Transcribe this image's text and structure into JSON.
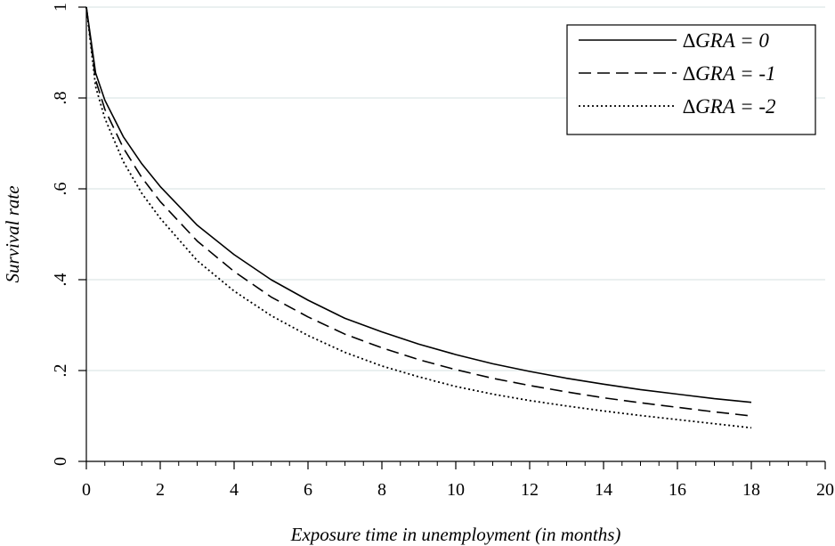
{
  "chart_data": {
    "type": "line",
    "xlabel": "Exposure time in unemployment (in months)",
    "ylabel": "Survival rate",
    "xlim": [
      0,
      20
    ],
    "ylim": [
      0,
      1
    ],
    "x_ticks": [
      0,
      2,
      4,
      6,
      8,
      10,
      12,
      14,
      16,
      18,
      20
    ],
    "x_tick_labels": [
      "0",
      "2",
      "4",
      "6",
      "8",
      "10",
      "12",
      "14",
      "16",
      "18",
      "20"
    ],
    "y_ticks": [
      0,
      0.2,
      0.4,
      0.6,
      0.8,
      1
    ],
    "y_tick_labels": [
      "0",
      ".2",
      ".4",
      ".6",
      ".8",
      "1"
    ],
    "grid": "horizontal",
    "legend_position": "top-right",
    "x": [
      0,
      0.25,
      0.5,
      1,
      1.5,
      2,
      3,
      4,
      5,
      6,
      7,
      8,
      9,
      10,
      11,
      12,
      13,
      14,
      15,
      16,
      17,
      18
    ],
    "series": [
      {
        "name": "∆GRA =  0",
        "style": "solid",
        "values": [
          1.0,
          0.855,
          0.795,
          0.715,
          0.655,
          0.605,
          0.52,
          0.455,
          0.4,
          0.355,
          0.315,
          0.285,
          0.258,
          0.235,
          0.215,
          0.198,
          0.183,
          0.17,
          0.158,
          0.148,
          0.138,
          0.13
        ]
      },
      {
        "name": "∆GRA = -1",
        "style": "dashed",
        "values": [
          1.0,
          0.84,
          0.775,
          0.69,
          0.625,
          0.572,
          0.485,
          0.418,
          0.362,
          0.318,
          0.28,
          0.25,
          0.224,
          0.202,
          0.183,
          0.167,
          0.153,
          0.14,
          0.129,
          0.119,
          0.109,
          0.1
        ]
      },
      {
        "name": "∆GRA = -2",
        "style": "dotted",
        "values": [
          1.0,
          0.825,
          0.755,
          0.66,
          0.59,
          0.535,
          0.442,
          0.375,
          0.321,
          0.277,
          0.24,
          0.21,
          0.186,
          0.165,
          0.148,
          0.134,
          0.122,
          0.111,
          0.101,
          0.092,
          0.083,
          0.074
        ]
      }
    ]
  }
}
